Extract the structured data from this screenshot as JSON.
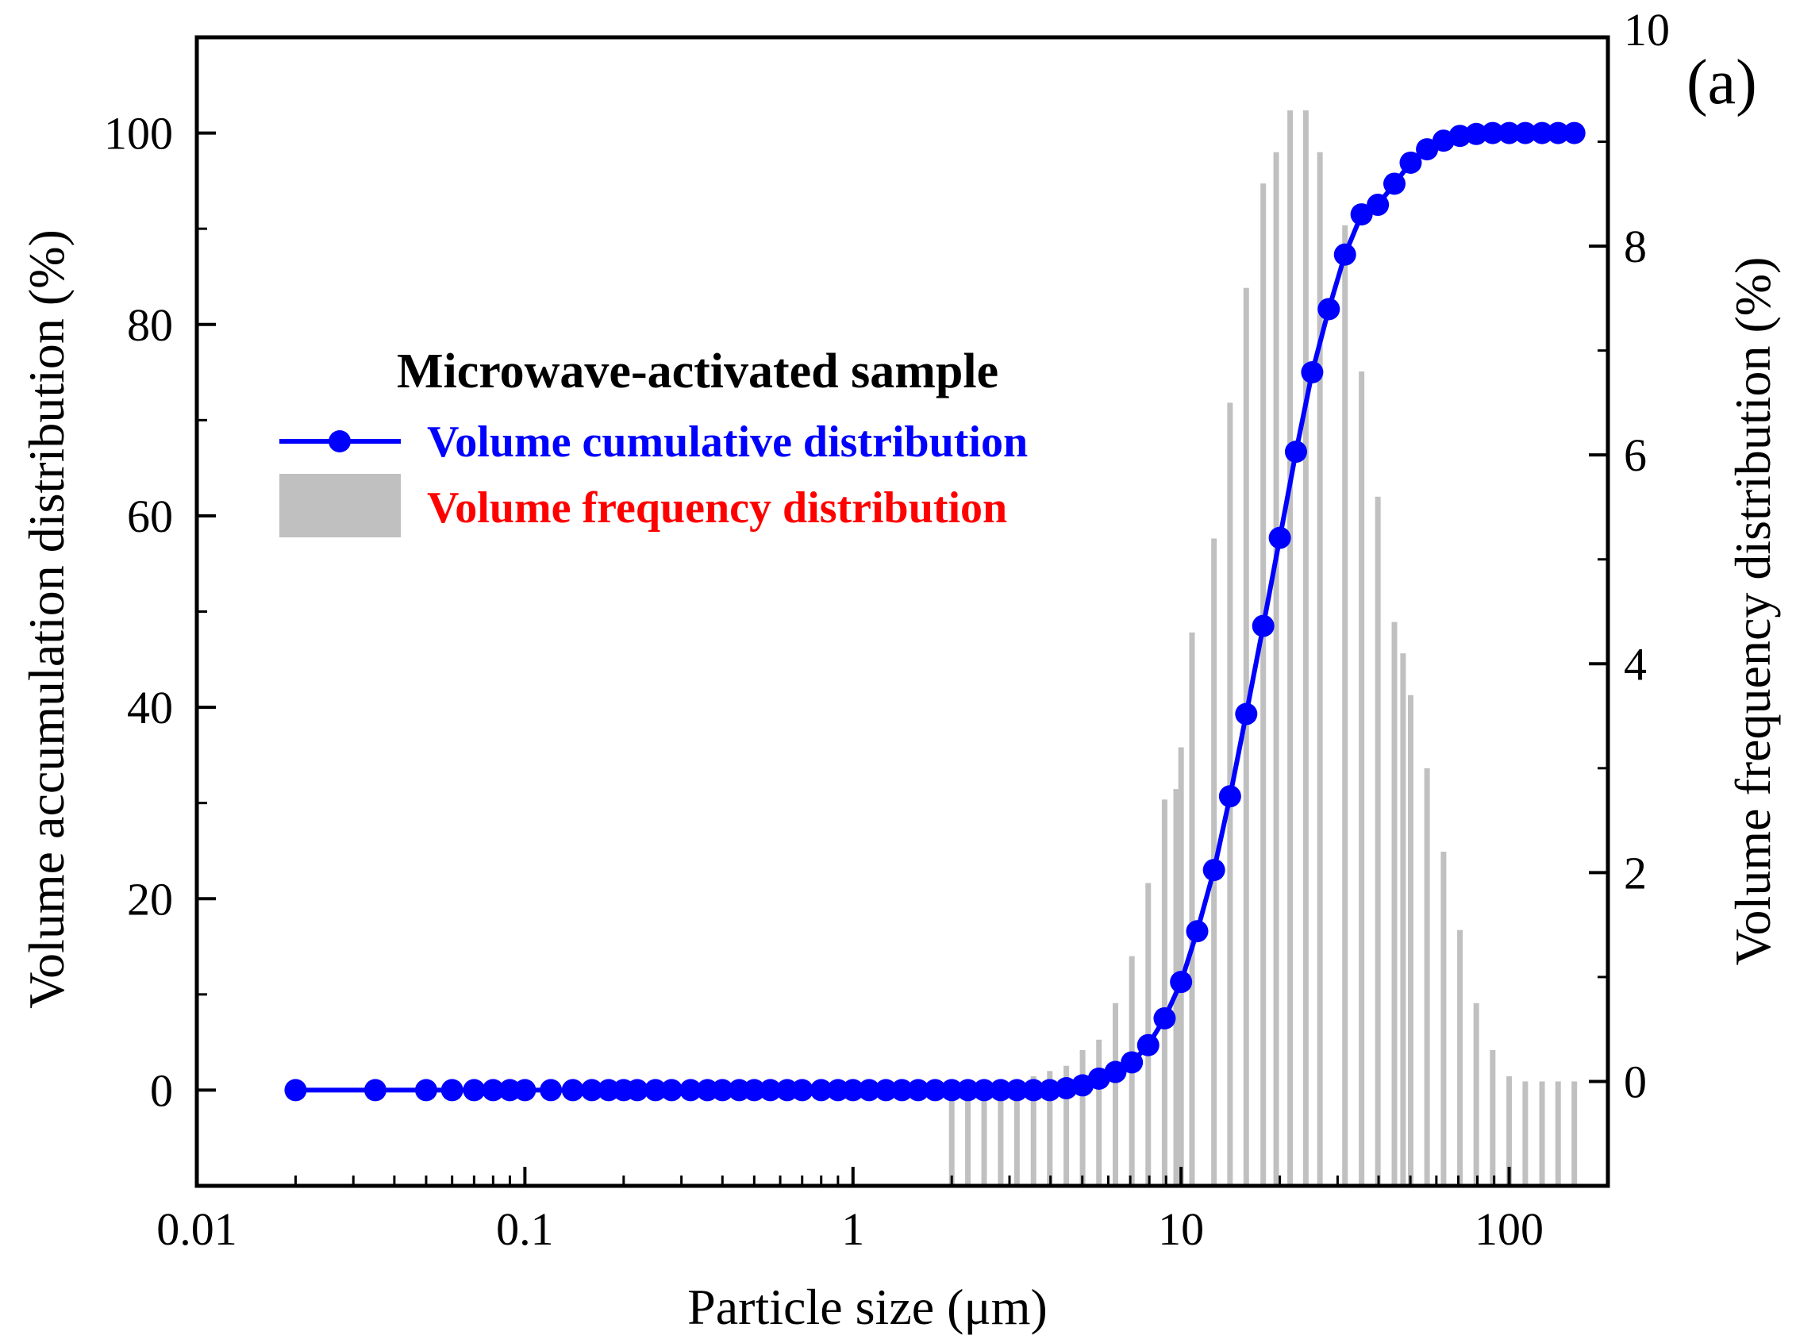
{
  "panel_label": "(a)",
  "chart_data": {
    "type": "bar+line",
    "title": "Microwave-activated sample",
    "xlabel": "Particle size (μm)",
    "ylabel": "Volume accumulation distribution (%)",
    "y2label": "Volume frequency distribution (%)",
    "xscale": "log",
    "xlim": [
      0.01,
      200
    ],
    "ylim": [
      -10,
      110
    ],
    "y2lim": [
      -1,
      10
    ],
    "x_ticks": [
      0.01,
      0.1,
      1,
      10,
      100
    ],
    "x_tick_labels": [
      "0.01",
      "0.1",
      "1",
      "10",
      "100"
    ],
    "y_ticks": [
      0,
      20,
      40,
      60,
      80,
      100
    ],
    "y_tick_labels": [
      "0",
      "20",
      "40",
      "60",
      "80",
      "100"
    ],
    "y2_ticks": [
      0,
      2,
      4,
      6,
      8,
      10
    ],
    "y2_tick_labels": [
      "0",
      "2",
      "4",
      "6",
      "8",
      "10"
    ],
    "legend": {
      "position": "upper-left",
      "title": "Microwave-activated sample",
      "entries": [
        {
          "label": "Volume cumulative distribution",
          "color": "#0000ff",
          "marker": "circle-line"
        },
        {
          "label": "Volume frequency distribution",
          "color": "#ff0000",
          "marker": "gray-box"
        }
      ]
    },
    "series": [
      {
        "name": "Volume cumulative distribution",
        "axis": "left",
        "color": "#0000ff",
        "x": [
          0.02,
          0.035,
          0.05,
          0.06,
          0.07,
          0.08,
          0.09,
          0.1,
          0.12,
          0.14,
          0.16,
          0.18,
          0.2,
          0.22,
          0.25,
          0.28,
          0.32,
          0.36,
          0.4,
          0.45,
          0.5,
          0.56,
          0.63,
          0.7,
          0.8,
          0.9,
          1.0,
          1.12,
          1.26,
          1.41,
          1.58,
          1.78,
          2.0,
          2.24,
          2.51,
          2.82,
          3.16,
          3.55,
          3.98,
          4.47,
          5.01,
          5.62,
          6.31,
          7.08,
          7.94,
          8.91,
          10.0,
          11.2,
          12.6,
          14.1,
          15.8,
          17.8,
          20.0,
          22.4,
          25.1,
          28.2,
          31.6,
          35.5,
          39.8,
          44.7,
          50.1,
          56.2,
          63.1,
          70.8,
          79.4,
          89.1,
          100,
          112,
          126,
          141,
          158
        ],
        "values": [
          0,
          0,
          0,
          0,
          0,
          0,
          0,
          0,
          0,
          0,
          0,
          0,
          0,
          0,
          0,
          0,
          0,
          0,
          0,
          0,
          0,
          0,
          0,
          0,
          0,
          0,
          0,
          0,
          0,
          0,
          0,
          0,
          0,
          0,
          0,
          0,
          0,
          0,
          0,
          0.2,
          0.5,
          1.2,
          1.9,
          2.9,
          4.7,
          7.5,
          11.3,
          16.6,
          23.0,
          30.7,
          39.3,
          48.5,
          57.7,
          66.7,
          75.0,
          81.6,
          87.3,
          91.5,
          92.5,
          94.7,
          96.9,
          98.3,
          99.2,
          99.7,
          99.9,
          100,
          100,
          100,
          100,
          100,
          100
        ]
      },
      {
        "name": "Volume frequency distribution",
        "axis": "right",
        "color": "#c0c0c0",
        "x": [
          0.02,
          0.035,
          0.05,
          0.06,
          0.065,
          0.07,
          0.075,
          0.08,
          0.085,
          0.09,
          0.1,
          0.11,
          0.12,
          0.13,
          0.14,
          0.16,
          0.18,
          0.2,
          0.22,
          0.25,
          0.28,
          0.32,
          0.36,
          0.4,
          0.45,
          0.5,
          0.56,
          0.63,
          0.7,
          0.8,
          0.9,
          1.0,
          1.12,
          1.26,
          1.41,
          1.58,
          1.78,
          2.0,
          2.24,
          2.51,
          2.82,
          3.16,
          3.55,
          3.98,
          4.47,
          5.01,
          5.62,
          6.31,
          7.08,
          7.94,
          8.91,
          9.66,
          10.0,
          10.8,
          12.6,
          14.1,
          15.8,
          17.8,
          19.5,
          21.5,
          24.0,
          26.5,
          31.6,
          35.5,
          39.8,
          44.7,
          47.5,
          50.1,
          56.2,
          63.1,
          70.8,
          79.4,
          89.1,
          100,
          112,
          126,
          141,
          158
        ],
        "values": [
          -1,
          -1,
          -1,
          -1,
          -1,
          -1,
          -1,
          -1,
          -1,
          -1,
          -1,
          -1,
          -1,
          -1,
          -1,
          -1,
          -1,
          -1,
          -1,
          -1,
          -1,
          -1,
          -1,
          -1,
          -1,
          -1,
          -1,
          -1,
          -1,
          -1,
          -1,
          -1,
          -1,
          -1,
          -1,
          -1,
          -1,
          0,
          0,
          0,
          0,
          0,
          0.05,
          0.1,
          0.15,
          0.3,
          0.4,
          0.75,
          1.2,
          1.9,
          2.7,
          2.8,
          3.2,
          4.3,
          5.2,
          6.5,
          7.6,
          8.6,
          8.9,
          9.3,
          9.3,
          8.9,
          8.2,
          6.8,
          5.6,
          4.4,
          4.1,
          3.7,
          3.0,
          2.2,
          1.45,
          0.75,
          0.3,
          0.05,
          0,
          0,
          0,
          0
        ]
      }
    ]
  }
}
